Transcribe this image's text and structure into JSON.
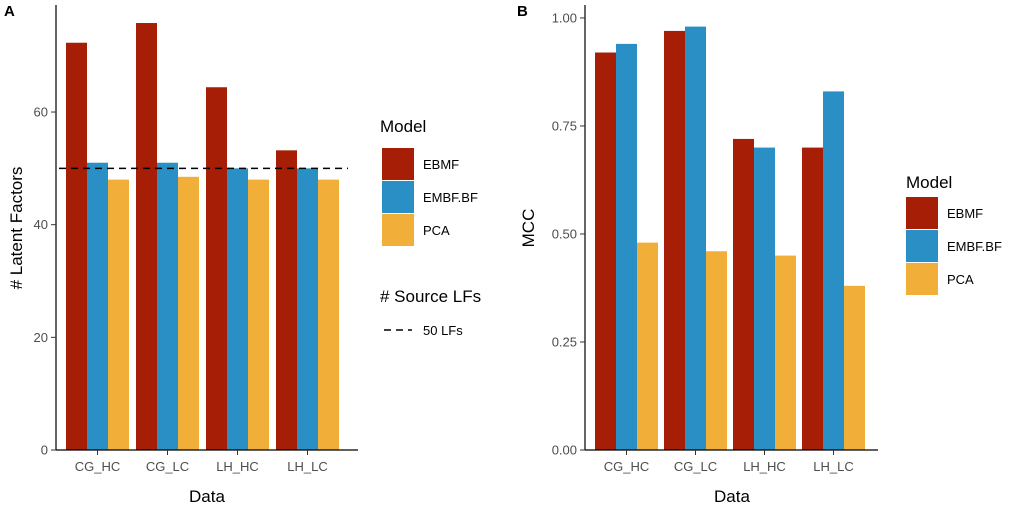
{
  "colors": {
    "EBMF": "#A71E07",
    "EMBF.BF": "#2A8FC4",
    "PCA": "#F1AE39",
    "axis": "#000000",
    "tick_text": "#4d4d4d"
  },
  "chart_data": [
    {
      "type": "bar",
      "panel": "A",
      "categories": [
        "CG_HC",
        "CG_LC",
        "LH_HC",
        "LH_LC"
      ],
      "series": [
        {
          "name": "EBMF",
          "values": [
            72.3,
            75.8,
            64.4,
            53.2
          ]
        },
        {
          "name": "EMBF.BF",
          "values": [
            51,
            51,
            50,
            50
          ]
        },
        {
          "name": "PCA",
          "values": [
            48,
            48.5,
            48,
            48
          ]
        }
      ],
      "xlabel": "Data",
      "ylabel": "# Latent Factors",
      "ylim": [
        0,
        79
      ],
      "yticks": [
        0,
        20,
        40,
        60
      ],
      "ytick_labels": [
        "0",
        "20",
        "40",
        "60"
      ],
      "reference_line": {
        "value": 50,
        "label": "50 LFs"
      },
      "legend": {
        "title": "Model",
        "entries": [
          "EBMF",
          "EMBF.BF",
          "PCA"
        ]
      },
      "line_legend": {
        "title": "# Source LFs",
        "entries": [
          "50 LFs"
        ]
      }
    },
    {
      "type": "bar",
      "panel": "B",
      "categories": [
        "CG_HC",
        "CG_LC",
        "LH_HC",
        "LH_LC"
      ],
      "series": [
        {
          "name": "EBMF",
          "values": [
            0.92,
            0.97,
            0.72,
            0.7
          ]
        },
        {
          "name": "EMBF.BF",
          "values": [
            0.94,
            0.98,
            0.7,
            0.83
          ]
        },
        {
          "name": "PCA",
          "values": [
            0.48,
            0.46,
            0.45,
            0.38
          ]
        }
      ],
      "xlabel": "Data",
      "ylabel": "MCC",
      "ylim": [
        0,
        1.03
      ],
      "yticks": [
        0,
        0.25,
        0.5,
        0.75,
        1.0
      ],
      "ytick_labels": [
        "0.00",
        "0.25",
        "0.50",
        "0.75",
        "1.00"
      ],
      "legend": {
        "title": "Model",
        "entries": [
          "EBMF",
          "EMBF.BF",
          "PCA"
        ]
      }
    }
  ]
}
